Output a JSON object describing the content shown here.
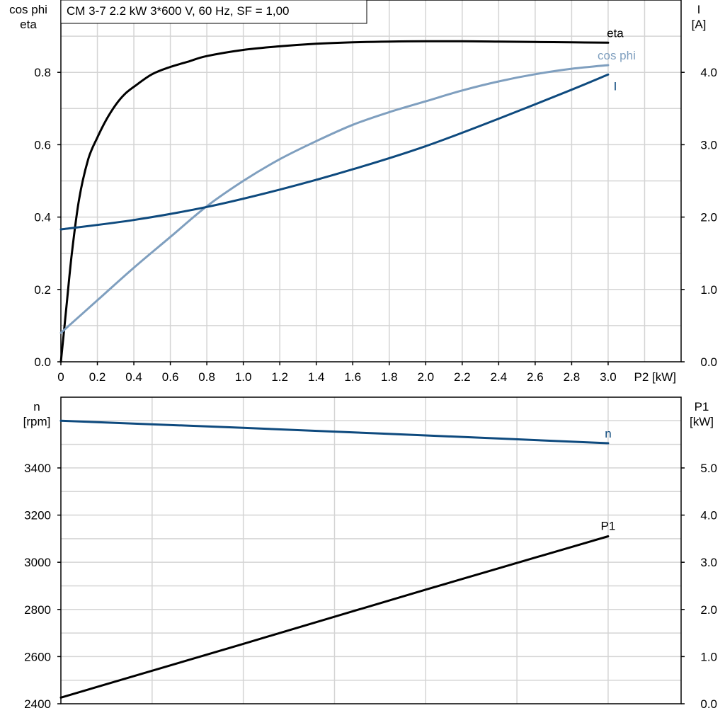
{
  "title": "CM 3-7   2.2 kW   3*600 V, 60 Hz, SF = 1,00",
  "colors": {
    "eta": "#000000",
    "cos_phi": "#7f9fbf",
    "I": "#0e4a7e",
    "n": "#0e4a7e",
    "P1": "#000000",
    "grid": "#d4d4d4"
  },
  "chart_data": [
    {
      "type": "line",
      "grid": true,
      "xlabel": "P2 [kW]",
      "xlim": [
        0,
        3.4
      ],
      "x_ticks": [
        "0",
        "0.2",
        "0.4",
        "0.6",
        "0.8",
        "1.0",
        "1.2",
        "1.4",
        "1.6",
        "1.8",
        "2.0",
        "2.2",
        "2.4",
        "2.6",
        "2.8",
        "3.0"
      ],
      "left_axis": {
        "label_lines": [
          "cos phi",
          "eta"
        ],
        "range": [
          0,
          1.0
        ],
        "ticks": [
          "0.0",
          "0.2",
          "0.4",
          "0.6",
          "0.8"
        ]
      },
      "right_axis": {
        "label_lines": [
          "I",
          "[A]"
        ],
        "range": [
          0,
          5.0
        ],
        "ticks": [
          "0.0",
          "1.0",
          "2.0",
          "3.0",
          "4.0"
        ]
      },
      "series": [
        {
          "name": "eta",
          "axis": "left",
          "x": [
            0,
            0.03,
            0.06,
            0.1,
            0.15,
            0.2,
            0.25,
            0.3,
            0.35,
            0.4,
            0.5,
            0.6,
            0.7,
            0.8,
            1.0,
            1.2,
            1.4,
            1.6,
            1.8,
            2.0,
            2.2,
            2.4,
            2.6,
            2.8,
            3.0
          ],
          "y": [
            0.0,
            0.15,
            0.3,
            0.45,
            0.56,
            0.62,
            0.67,
            0.71,
            0.74,
            0.76,
            0.795,
            0.815,
            0.83,
            0.845,
            0.862,
            0.872,
            0.879,
            0.883,
            0.885,
            0.886,
            0.886,
            0.885,
            0.884,
            0.883,
            0.882
          ]
        },
        {
          "name": "cos phi",
          "axis": "left",
          "x": [
            0,
            0.2,
            0.4,
            0.6,
            0.8,
            1.0,
            1.2,
            1.4,
            1.6,
            1.8,
            2.0,
            2.2,
            2.4,
            2.6,
            2.8,
            3.0
          ],
          "y": [
            0.08,
            0.17,
            0.26,
            0.345,
            0.43,
            0.5,
            0.56,
            0.61,
            0.655,
            0.69,
            0.72,
            0.75,
            0.775,
            0.795,
            0.81,
            0.82
          ]
        },
        {
          "name": "I",
          "axis": "right",
          "x": [
            0,
            0.4,
            0.8,
            1.2,
            1.6,
            2.0,
            2.4,
            2.8,
            3.0
          ],
          "y": [
            1.83,
            1.96,
            2.14,
            2.38,
            2.66,
            2.98,
            3.36,
            3.76,
            3.97
          ]
        }
      ]
    },
    {
      "type": "line",
      "grid": true,
      "xlim": [
        0,
        3.4
      ],
      "left_axis": {
        "label_lines": [
          "n",
          "[rpm]"
        ],
        "range": [
          2400,
          3700
        ],
        "ticks": [
          "2400",
          "2600",
          "2800",
          "3000",
          "3200",
          "3400"
        ]
      },
      "right_axis": {
        "label_lines": [
          "P1",
          "[kW]"
        ],
        "range": [
          0.0,
          6.5
        ],
        "ticks": [
          "0.0",
          "1.0",
          "2.0",
          "3.0",
          "4.0",
          "5.0"
        ]
      },
      "series": [
        {
          "name": "n",
          "axis": "left",
          "x": [
            0,
            1.0,
            2.0,
            3.0
          ],
          "y": [
            3600,
            3570,
            3538,
            3505
          ]
        },
        {
          "name": "P1",
          "axis": "right",
          "x": [
            0,
            1.0,
            2.0,
            3.0
          ],
          "y": [
            0.13,
            1.27,
            2.42,
            3.55
          ]
        }
      ]
    }
  ]
}
